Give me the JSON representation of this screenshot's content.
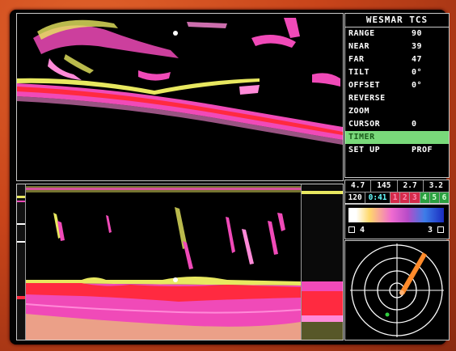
{
  "menu": {
    "title": "WESMAR TCS",
    "items": [
      {
        "label": "RANGE",
        "value": "90"
      },
      {
        "label": "NEAR",
        "value": "39"
      },
      {
        "label": "FAR",
        "value": "47"
      },
      {
        "label": "TILT",
        "value": "0°"
      },
      {
        "label": "OFFSET",
        "value": "0°"
      },
      {
        "label": "REVERSE",
        "value": ""
      },
      {
        "label": "ZOOM",
        "value": ""
      },
      {
        "label": "CURSOR",
        "value": "0"
      },
      {
        "label": "TIMER",
        "value": ""
      },
      {
        "label": "SET UP",
        "value": "PROF"
      }
    ],
    "active_item": "TIMER"
  },
  "readout": {
    "row1": [
      "4.7",
      "145",
      "2.7",
      "3.2"
    ],
    "row2": [
      "120",
      "0:41",
      "1",
      "2",
      "3",
      "4",
      "5",
      "6"
    ]
  },
  "colorbar": {
    "left_label": "4",
    "right_label": "3"
  },
  "colors": {
    "echo_magenta": "#f04ab8",
    "echo_pink": "#ff8ad8",
    "echo_yellow": "#e8e860",
    "echo_red": "#ff2a40",
    "menu_highlight": "#79d97a",
    "radar_line": "#ff8a2a",
    "radar_dot": "#30d040"
  }
}
